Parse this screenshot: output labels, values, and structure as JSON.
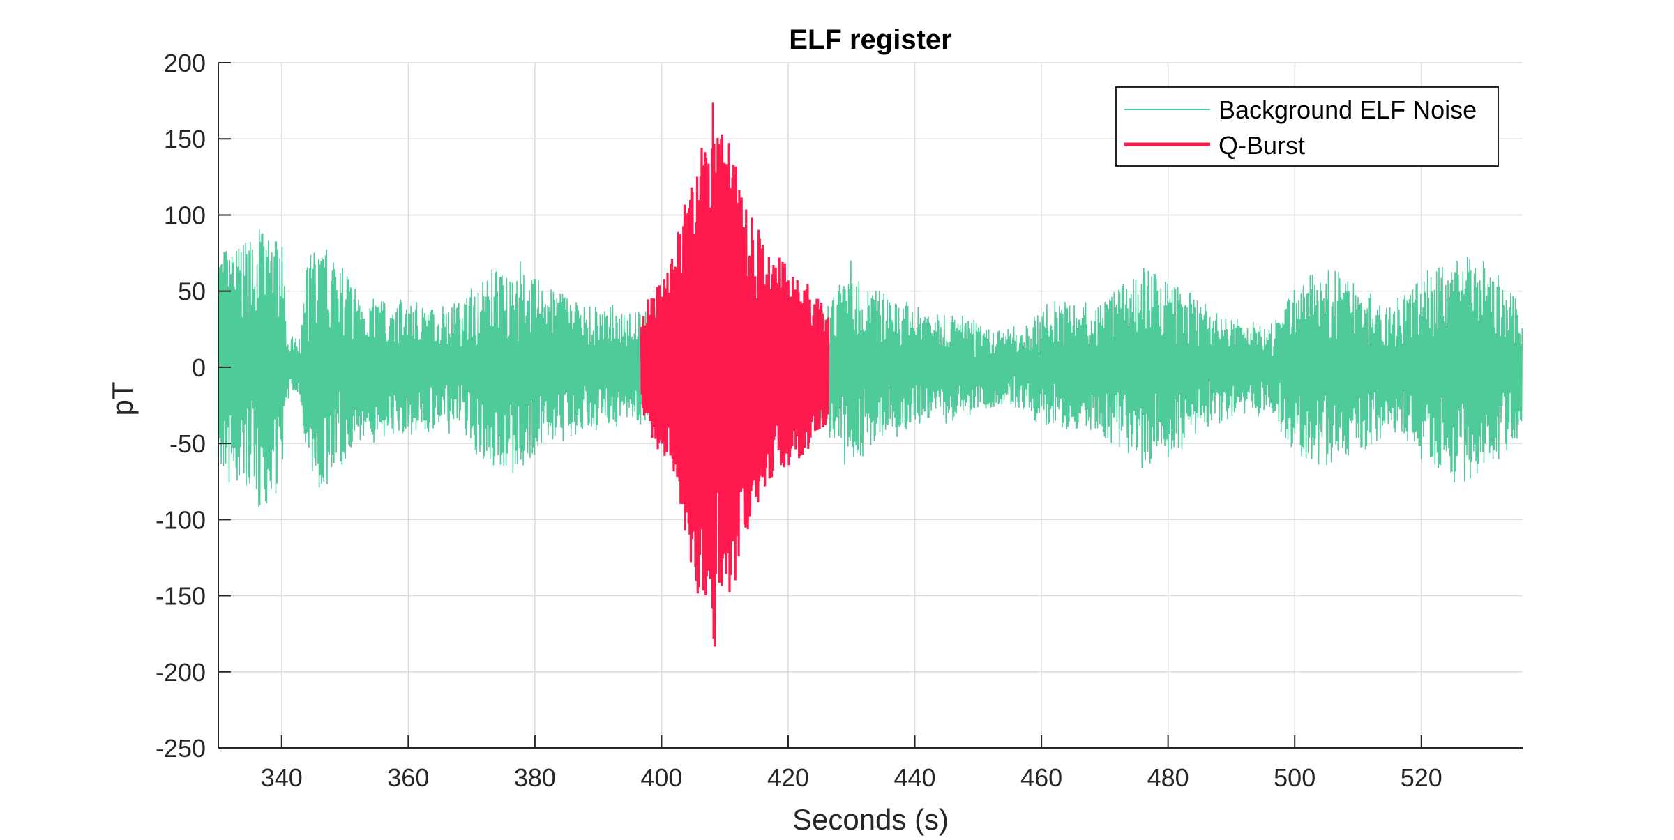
{
  "chart_data": {
    "type": "line",
    "title": "ELF register",
    "xlabel": "Seconds (s)",
    "ylabel": "pT",
    "xlim": [
      330,
      536
    ],
    "ylim": [
      -250,
      200
    ],
    "grid": true,
    "legend_position": "top-right",
    "x_ticks": [
      340,
      360,
      380,
      400,
      420,
      440,
      460,
      480,
      500,
      520
    ],
    "y_ticks": [
      200,
      150,
      100,
      50,
      0,
      -50,
      -100,
      -150,
      -200,
      -250
    ],
    "colors": {
      "noise": "#4ecb98",
      "burst": "#ff1a4d",
      "grid": "#dcdcdc",
      "axis": "#262626"
    },
    "series": [
      {
        "name": "Background ELF Noise",
        "x_range": [
          330,
          536
        ],
        "envelope": [
          [
            330,
            75
          ],
          [
            334,
            82
          ],
          [
            336,
            95
          ],
          [
            338,
            90
          ],
          [
            340,
            85
          ],
          [
            341,
            18
          ],
          [
            343,
            20
          ],
          [
            344,
            72
          ],
          [
            346,
            80
          ],
          [
            348,
            75
          ],
          [
            350,
            65
          ],
          [
            352,
            50
          ],
          [
            356,
            45
          ],
          [
            360,
            45
          ],
          [
            364,
            42
          ],
          [
            368,
            42
          ],
          [
            372,
            62
          ],
          [
            375,
            70
          ],
          [
            378,
            68
          ],
          [
            381,
            55
          ],
          [
            385,
            48
          ],
          [
            390,
            40
          ],
          [
            396,
            38
          ],
          [
            397,
            38
          ],
          [
            426,
            38
          ],
          [
            427,
            50
          ],
          [
            430,
            72
          ],
          [
            432,
            55
          ],
          [
            436,
            45
          ],
          [
            440,
            40
          ],
          [
            446,
            35
          ],
          [
            450,
            28
          ],
          [
            456,
            25
          ],
          [
            460,
            38
          ],
          [
            464,
            45
          ],
          [
            468,
            40
          ],
          [
            472,
            55
          ],
          [
            476,
            65
          ],
          [
            480,
            60
          ],
          [
            484,
            45
          ],
          [
            488,
            36
          ],
          [
            492,
            30
          ],
          [
            496,
            30
          ],
          [
            500,
            55
          ],
          [
            504,
            65
          ],
          [
            508,
            62
          ],
          [
            512,
            52
          ],
          [
            516,
            45
          ],
          [
            520,
            58
          ],
          [
            524,
            72
          ],
          [
            528,
            80
          ],
          [
            530,
            70
          ],
          [
            533,
            55
          ],
          [
            536,
            45
          ]
        ]
      },
      {
        "name": "Q-Burst",
        "x_range": [
          396.8,
          426.4
        ],
        "envelope": [
          [
            396.8,
            30
          ],
          [
            398,
            45
          ],
          [
            400,
            55
          ],
          [
            401.5,
            70
          ],
          [
            403,
            100
          ],
          [
            404.5,
            130
          ],
          [
            406,
            155
          ],
          [
            407,
            165
          ],
          [
            408,
            190
          ],
          [
            409,
            175
          ],
          [
            410,
            160
          ],
          [
            411.5,
            145
          ],
          [
            413,
            110
          ],
          [
            415,
            95
          ],
          [
            417,
            75
          ],
          [
            419,
            70
          ],
          [
            421,
            65
          ],
          [
            423,
            55
          ],
          [
            425,
            45
          ],
          [
            426.4,
            35
          ]
        ]
      }
    ]
  }
}
